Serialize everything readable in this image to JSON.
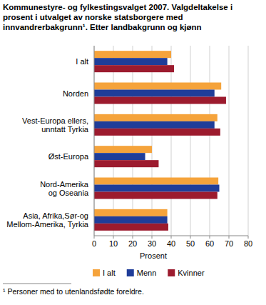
{
  "chart_data": {
    "type": "bar",
    "orientation": "horizontal",
    "title": "Kommunestyre- og fylkestingsvalget 2007. Valgdeltakelse i prosent i utvalget av norske statsborgere med innvandrerbakgrunn¹. Etter landbakgrunn og kjønn",
    "x_label": "Prosent",
    "annotations": [
      "¹ Personer med to utenlandsfødte foreldre."
    ],
    "categories": [
      "I alt",
      "Norden",
      "Vest-Europa ellers,\nunntatt Tyrkia",
      "Øst-Europa",
      "Nord-Amerika\nog Oseania",
      "Asia, Afrika,Sør-og\nMellom-Amerika, Tyrkia"
    ],
    "series": [
      {
        "name": "I alt",
        "color": "#f5a33b",
        "values": [
          40,
          66,
          64,
          30,
          64.5,
          38
        ]
      },
      {
        "name": "Menn",
        "color": "#1f3d99",
        "values": [
          38,
          62.5,
          62.5,
          26.5,
          65,
          38
        ]
      },
      {
        "name": "Kvinner",
        "color": "#9c1b2e",
        "values": [
          41.5,
          68.5,
          65.5,
          33.5,
          64,
          38.5
        ]
      }
    ],
    "xlim": [
      0,
      80
    ],
    "xticks": [
      0,
      10,
      20,
      30,
      40,
      50,
      60,
      70,
      80
    ],
    "grid": true,
    "legend": "bottom"
  }
}
